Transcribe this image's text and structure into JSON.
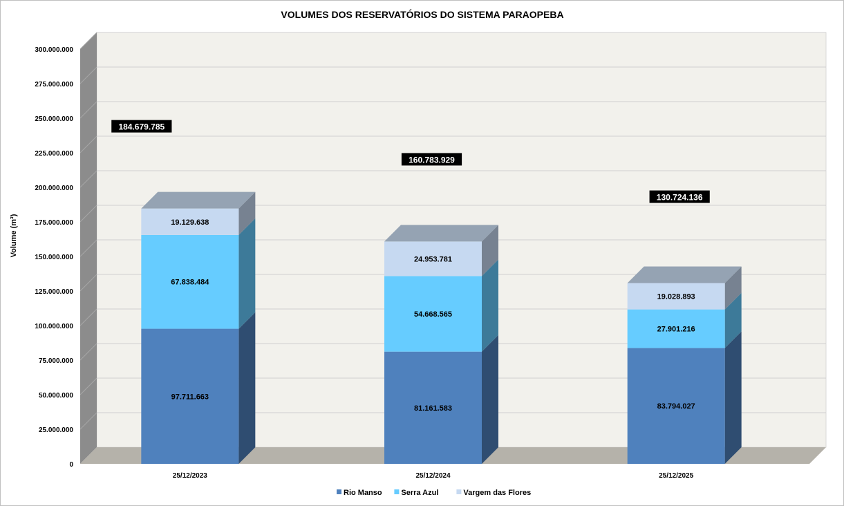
{
  "chart_data": {
    "type": "bar",
    "stacked": true,
    "three_d": true,
    "title": "VOLUMES DOS RESERVATÓRIOS DO SISTEMA PARAOPEBA",
    "ylabel": "Volume (m³)",
    "xlabel": "",
    "ylim": [
      0,
      300000000
    ],
    "yticks": [
      0,
      25000000,
      50000000,
      75000000,
      100000000,
      125000000,
      150000000,
      175000000,
      200000000,
      225000000,
      250000000,
      275000000,
      300000000
    ],
    "ytick_labels": [
      "0",
      "25.000.000",
      "50.000.000",
      "75.000.000",
      "100.000.000",
      "125.000.000",
      "150.000.000",
      "175.000.000",
      "200.000.000",
      "225.000.000",
      "250.000.000",
      "275.000.000",
      "300.000.000"
    ],
    "categories": [
      "25/12/2023",
      "25/12/2024",
      "25/12/2025"
    ],
    "series": [
      {
        "name": "Rio Manso",
        "color": "#4f81bd",
        "values": [
          97711663,
          81161583,
          83794027
        ],
        "labels": [
          "97.711.663",
          "81.161.583",
          "83.794.027"
        ]
      },
      {
        "name": "Serra Azul",
        "color": "#66ccff",
        "values": [
          67838484,
          54668565,
          27901216
        ],
        "labels": [
          "67.838.484",
          "54.668.565",
          "27.901.216"
        ]
      },
      {
        "name": "Vargem das Flores",
        "color": "#c6d9f1",
        "values": [
          19129638,
          24953781,
          19028893
        ],
        "labels": [
          "19.129.638",
          "24.953.781",
          "19.028.893"
        ]
      }
    ],
    "totals": [
      184679785,
      160783929,
      130724136
    ],
    "total_labels": [
      "184.679.785",
      "160.783.929",
      "130.724.136"
    ],
    "legend_position": "bottom",
    "grid": true
  }
}
